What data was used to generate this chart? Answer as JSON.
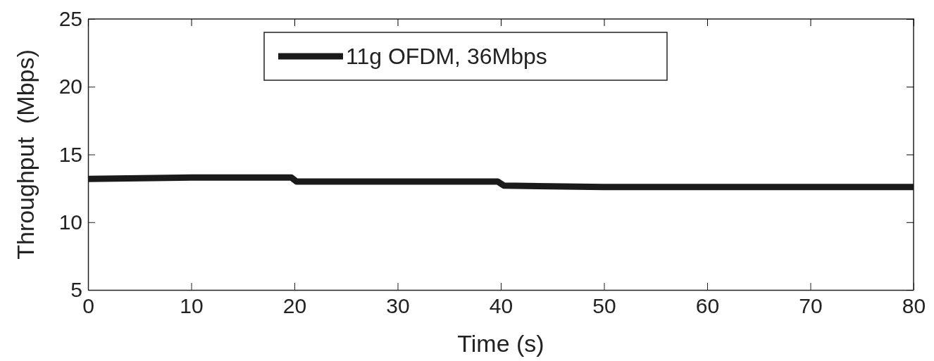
{
  "chart_data": {
    "type": "line",
    "xlabel": "Time (s)",
    "ylabel": "Throughput  (Mbps)",
    "x": [
      0,
      10,
      19.7,
      20.2,
      30,
      39.7,
      40.3,
      50,
      60,
      70,
      80
    ],
    "series": [
      {
        "name": "11g OFDM, 36Mbps",
        "color": "#1a1a1a",
        "values": [
          13.2,
          13.3,
          13.3,
          13.0,
          13.0,
          13.0,
          12.7,
          12.6,
          12.6,
          12.6,
          12.6
        ]
      }
    ],
    "xlim": [
      0,
      80
    ],
    "xticks": [
      0,
      10,
      20,
      30,
      40,
      50,
      60,
      70,
      80
    ],
    "ylim": [
      5,
      25
    ],
    "yticks": [
      5,
      10,
      15,
      20,
      25
    ],
    "grid": false,
    "legend": "top",
    "line_style": "solid",
    "marker": "none"
  }
}
